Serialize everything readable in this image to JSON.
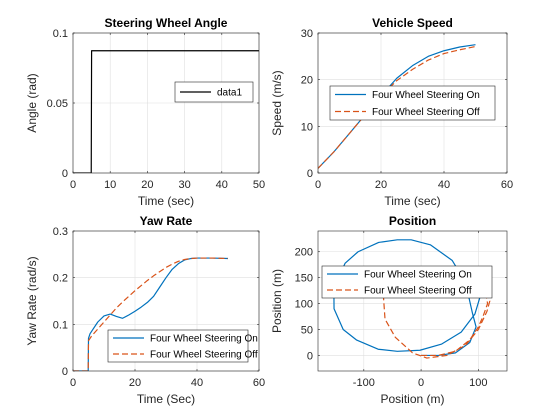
{
  "chart_data": [
    {
      "type": "line",
      "title": "Steering Wheel Angle",
      "xlabel": "Time (sec)",
      "ylabel": "Angle (rad)",
      "xlim": [
        0,
        50
      ],
      "ylim": [
        0,
        0.1
      ],
      "xticks": [
        0,
        10,
        20,
        30,
        40,
        50
      ],
      "yticks": [
        0,
        0.05,
        0.1
      ],
      "xtick_labels": [
        "0",
        "10",
        "20",
        "30",
        "40",
        "50"
      ],
      "ytick_labels": [
        "0",
        "0.05",
        "0.1"
      ],
      "grid": true,
      "legend_position": "right",
      "series": [
        {
          "name": "data1",
          "color": "#000000",
          "dash": "solid",
          "x": [
            0,
            4.9,
            5.0,
            50
          ],
          "y": [
            0,
            0,
            0.0873,
            0.0873
          ]
        }
      ]
    },
    {
      "type": "line",
      "title": "Vehicle Speed",
      "xlabel": "Time (sec)",
      "ylabel": "Speed (m/s)",
      "xlim": [
        0,
        60
      ],
      "ylim": [
        0,
        30
      ],
      "xticks": [
        0,
        20,
        40,
        60
      ],
      "yticks": [
        0,
        10,
        20,
        30
      ],
      "xtick_labels": [
        "0",
        "20",
        "40",
        "60"
      ],
      "ytick_labels": [
        "0",
        "10",
        "20",
        "30"
      ],
      "grid": true,
      "legend_position": "center",
      "series": [
        {
          "name": "Four Wheel Steering On",
          "color": "#0072BD",
          "dash": "solid",
          "x": [
            0,
            5,
            10,
            15,
            20,
            25,
            30,
            35,
            40,
            45,
            50
          ],
          "y": [
            1,
            4.5,
            8.5,
            12.5,
            16.5,
            20.3,
            23.0,
            25.0,
            26.2,
            27.0,
            27.5
          ]
        },
        {
          "name": "Four Wheel Steering Off",
          "color": "#D95319",
          "dash": "dashed",
          "x": [
            0,
            5,
            10,
            15,
            20,
            25,
            30,
            35,
            40,
            45,
            50
          ],
          "y": [
            1,
            4.5,
            8.5,
            12.5,
            16.5,
            19.8,
            22.2,
            24.2,
            25.6,
            26.4,
            27.1
          ]
        }
      ]
    },
    {
      "type": "line",
      "title": "Yaw Rate",
      "xlabel": "Time (Sec)",
      "ylabel": "Yaw Rate (rad/s)",
      "xlim": [
        0,
        60
      ],
      "ylim": [
        0,
        0.3
      ],
      "xticks": [
        0,
        20,
        40,
        60
      ],
      "yticks": [
        0,
        0.1,
        0.2,
        0.3
      ],
      "xtick_labels": [
        "0",
        "20",
        "40",
        "60"
      ],
      "ytick_labels": [
        "0",
        "0.1",
        "0.2",
        "0.3"
      ],
      "grid": true,
      "legend_position": "bottom-right",
      "series": [
        {
          "name": "Four Wheel Steering On",
          "color": "#0072BD",
          "dash": "solid",
          "x": [
            0,
            4.9,
            5.0,
            5.5,
            8,
            10,
            12,
            14,
            16,
            18,
            20,
            22,
            24,
            26,
            28,
            30,
            32,
            34,
            36,
            38,
            40,
            42,
            45,
            50
          ],
          "y": [
            0,
            0,
            0.07,
            0.08,
            0.105,
            0.118,
            0.122,
            0.117,
            0.113,
            0.12,
            0.128,
            0.137,
            0.147,
            0.16,
            0.18,
            0.2,
            0.218,
            0.23,
            0.238,
            0.241,
            0.242,
            0.242,
            0.242,
            0.241
          ]
        },
        {
          "name": "Four Wheel Steering Off",
          "color": "#D95319",
          "dash": "dashed",
          "x": [
            0,
            4.9,
            5.0,
            6,
            8,
            10,
            12,
            14,
            16,
            18,
            20,
            22,
            24,
            26,
            28,
            30,
            32,
            34,
            36,
            38,
            40,
            45,
            50
          ],
          "y": [
            0,
            0,
            0.065,
            0.075,
            0.09,
            0.105,
            0.12,
            0.135,
            0.148,
            0.16,
            0.172,
            0.183,
            0.194,
            0.204,
            0.213,
            0.222,
            0.229,
            0.235,
            0.239,
            0.241,
            0.242,
            0.242,
            0.241
          ]
        }
      ]
    },
    {
      "type": "line",
      "title": "Position",
      "xlabel": "Position (m)",
      "ylabel": "Position (m)",
      "xlim": [
        -180,
        150
      ],
      "ylim": [
        -30,
        240
      ],
      "xticks": [
        -100,
        0,
        100
      ],
      "yticks": [
        0,
        50,
        100,
        150,
        200
      ],
      "xtick_labels": [
        "-100",
        "0",
        "100"
      ],
      "ytick_labels": [
        "0",
        "50",
        "100",
        "150",
        "200"
      ],
      "grid": true,
      "legend_position": "center",
      "series": [
        {
          "name": "Four Wheel Steering On",
          "color": "#0072BD",
          "dash": "solid",
          "x": [
            0,
            30,
            60,
            85,
            96,
            90,
            77.6,
            54.2,
            16.1,
            -17.3,
            -41.6,
            -74.1,
            -110,
            -132.6,
            -152.3,
            -152,
            -136,
            -113,
            -75,
            -41.6,
            -2,
            36,
            70,
            94,
            103.5,
            98,
            80
          ],
          "y": [
            0,
            0,
            5,
            25,
            55,
            80,
            140.5,
            183.4,
            213.4,
            223,
            223,
            218,
            200,
            178,
            130,
            90,
            50,
            30,
            12,
            8,
            10,
            22,
            45,
            80,
            115,
            140,
            170
          ]
        },
        {
          "name": "Four Wheel Steering Off",
          "color": "#D95319",
          "dash": "dashed",
          "x": [
            0,
            30,
            60,
            85,
            100,
            108,
            116.1,
            112,
            92.8,
            63.5,
            41.6,
            10,
            -22.2,
            -53.3,
            -65.5,
            -63,
            -45,
            -15,
            10,
            45,
            78,
            100,
            115,
            120,
            112
          ],
          "y": [
            0,
            0,
            8,
            30,
            55,
            75,
            100,
            125,
            143,
            160,
            166,
            169,
            165,
            140,
            110,
            70,
            35,
            5,
            -5,
            0,
            20,
            50,
            85,
            105,
            130
          ]
        }
      ]
    }
  ]
}
